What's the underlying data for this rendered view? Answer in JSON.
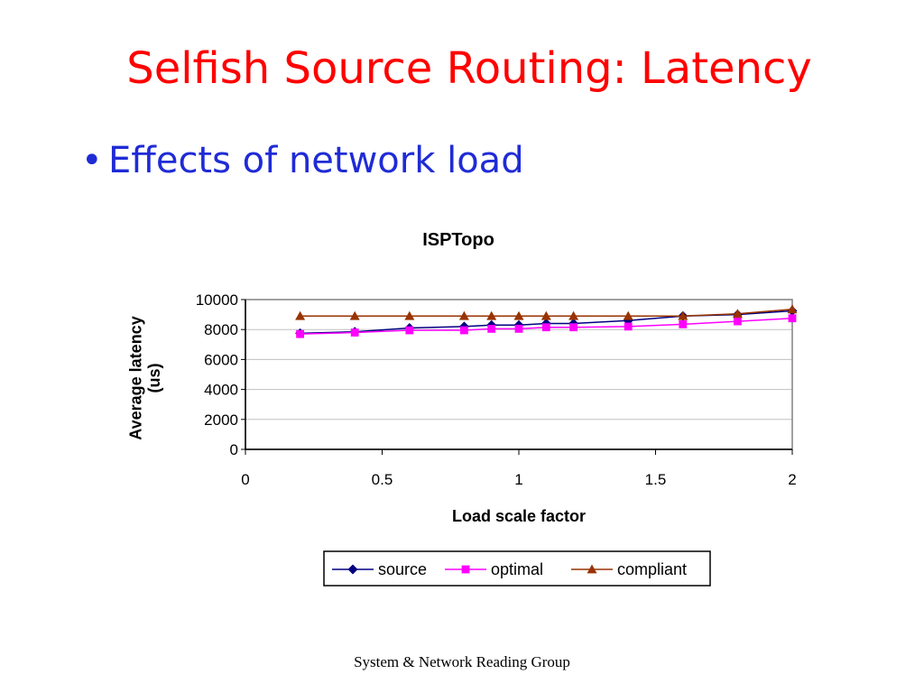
{
  "slide": {
    "title": "Selfish Source Routing: Latency",
    "bullet": "Effects of network load",
    "footer": "System & Network Reading Group"
  },
  "chart_data": {
    "type": "line",
    "title": "ISPTopo",
    "xlabel": "Load scale factor",
    "ylabel": "Average latency (us)",
    "xlim": [
      0,
      2
    ],
    "ylim": [
      0,
      10000
    ],
    "xticks": [
      0,
      0.5,
      1,
      1.5,
      2
    ],
    "xtick_labels": [
      "0",
      "0.5",
      "1",
      "1.5",
      "2"
    ],
    "yticks": [
      0,
      2000,
      4000,
      6000,
      8000,
      10000
    ],
    "ytick_labels": [
      "0",
      "2000",
      "4000",
      "6000",
      "8000",
      "10000"
    ],
    "grid": "horizontal",
    "legend": "bottom",
    "x": [
      0.2,
      0.4,
      0.6,
      0.8,
      0.9,
      1.0,
      1.1,
      1.2,
      1.4,
      1.6,
      1.8,
      2.0
    ],
    "series": [
      {
        "name": "source",
        "color": "#000080",
        "marker": "diamond",
        "values": [
          7750,
          7850,
          8100,
          8200,
          8300,
          8300,
          8400,
          8400,
          8600,
          8900,
          9000,
          9250
        ]
      },
      {
        "name": "optimal",
        "color": "#ff00ff",
        "marker": "square",
        "values": [
          7700,
          7800,
          7950,
          7950,
          8050,
          8050,
          8150,
          8150,
          8200,
          8350,
          8550,
          8750
        ]
      },
      {
        "name": "compliant",
        "color": "#993300",
        "marker": "triangle",
        "values": [
          8900,
          8900,
          8900,
          8900,
          8900,
          8900,
          8900,
          8900,
          8900,
          8900,
          9050,
          9350
        ]
      }
    ]
  }
}
